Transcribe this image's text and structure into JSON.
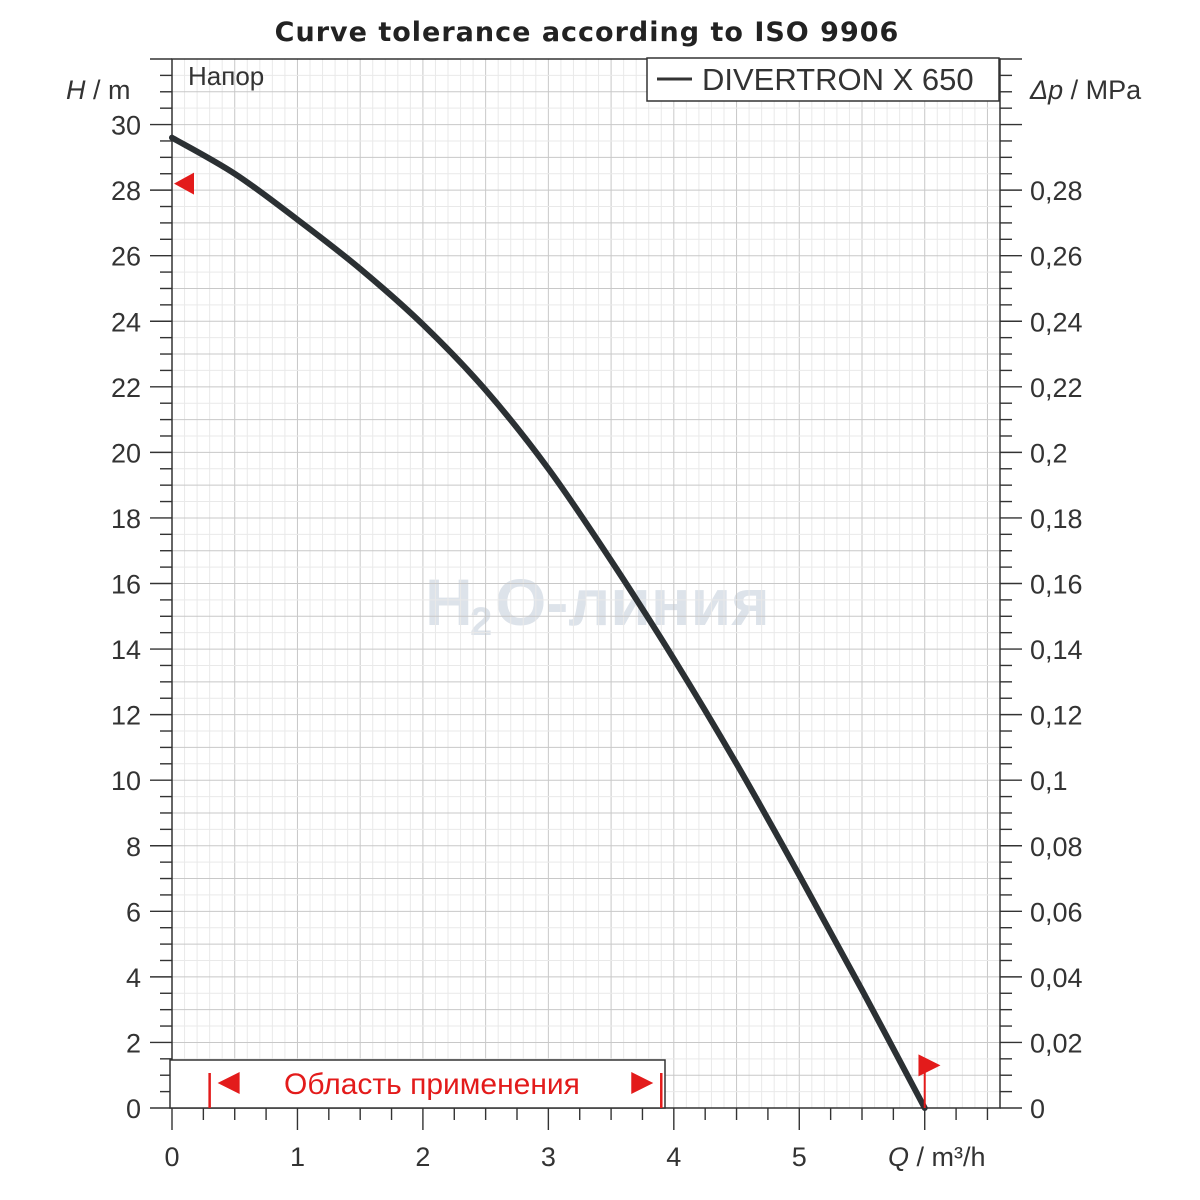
{
  "chart_data": {
    "type": "line",
    "title": "Curve tolerance according to ISO 9906",
    "x_axis": {
      "label_symbol": "Q",
      "label_unit": "m³/h",
      "range": [
        0,
        6.6
      ],
      "ticks": [
        0,
        1,
        2,
        3,
        4,
        5
      ],
      "tick_labels": [
        "0",
        "1",
        "2",
        "3",
        "4",
        "5"
      ]
    },
    "y_axis_left": {
      "label_symbol": "H",
      "label_unit": "m",
      "range": [
        0,
        32
      ],
      "ticks": [
        0,
        2,
        4,
        6,
        8,
        10,
        12,
        14,
        16,
        18,
        20,
        22,
        24,
        26,
        28,
        30
      ],
      "tick_labels": [
        "0",
        "2",
        "4",
        "6",
        "8",
        "10",
        "12",
        "14",
        "16",
        "18",
        "20",
        "22",
        "24",
        "26",
        "28",
        "30"
      ]
    },
    "y_axis_right": {
      "label_symbol": "Δp",
      "label_unit": "MPa",
      "range": [
        0,
        0.32
      ],
      "ticks": [
        0,
        0.02,
        0.04,
        0.06,
        0.08,
        0.1,
        0.12,
        0.14,
        0.16,
        0.18,
        0.2,
        0.22,
        0.24,
        0.26,
        0.28
      ],
      "tick_labels": [
        "0",
        "0,02",
        "0,04",
        "0,06",
        "0,08",
        "0,1",
        "0,12",
        "0,14",
        "0,16",
        "0,18",
        "0,2",
        "0,22",
        "0,24",
        "0,26",
        "0,28"
      ]
    },
    "grid": true,
    "series": [
      {
        "name": "DIVERTRON X 650",
        "color": "#2b3033",
        "x": [
          0,
          0.5,
          1.0,
          1.5,
          2.0,
          2.5,
          3.0,
          3.5,
          4.0,
          4.5,
          5.0,
          5.5,
          6.0
        ],
        "y": [
          29.6,
          28.5,
          27.1,
          25.6,
          23.9,
          21.9,
          19.5,
          16.7,
          13.7,
          10.5,
          7.1,
          3.6,
          0
        ]
      }
    ],
    "legend": {
      "position": "top-right"
    },
    "annotation": "Напор",
    "tolerance_markers": [
      {
        "x": 0,
        "y": 28.2,
        "direction": "left",
        "color": "#e31b1b"
      },
      {
        "x": 5.95,
        "y": 1.3,
        "direction": "right",
        "color": "#e31b1b"
      }
    ],
    "application_range": {
      "label": "Область применения",
      "x_start": 0.3,
      "x_end": 3.9,
      "color": "#e31b1b"
    },
    "end_marker_x": 6.0
  },
  "watermark": {
    "main": "H O-линия",
    "sub": "2"
  }
}
